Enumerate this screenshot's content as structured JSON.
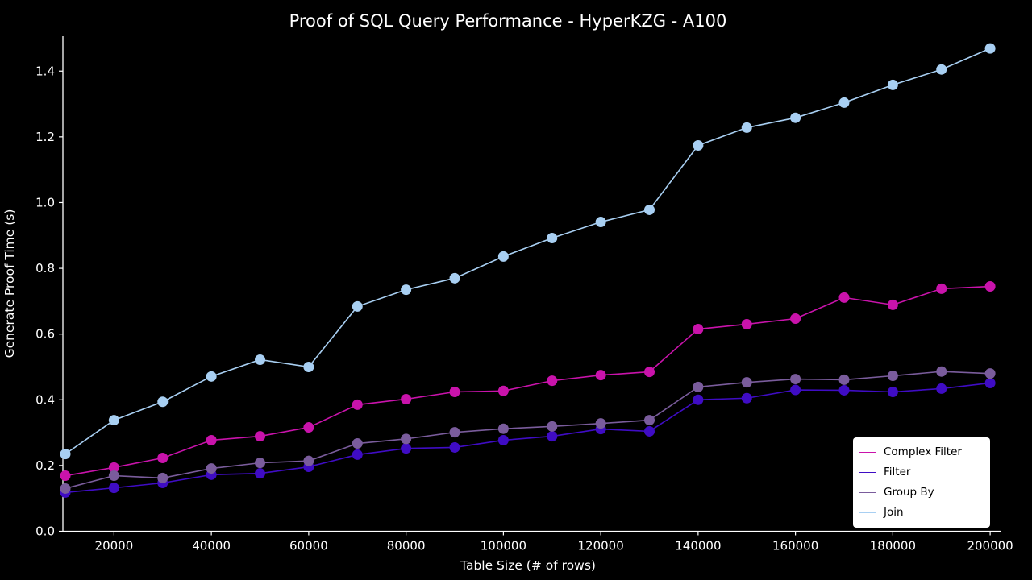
{
  "chart_data": {
    "type": "line",
    "title": "Proof of SQL Query Performance - HyperKZG - A100",
    "xlabel": "Table Size (# of rows)",
    "ylabel": "Generate Proof Time (s)",
    "background_color": "#000000",
    "axis_color": "#ffffff",
    "grid": false,
    "xlim": [
      9500,
      202300
    ],
    "ylim": [
      0,
      1.506
    ],
    "x_tick_values": [
      20000,
      40000,
      60000,
      80000,
      100000,
      120000,
      140000,
      160000,
      180000,
      200000
    ],
    "x_tick_labels": [
      "20000",
      "40000",
      "60000",
      "80000",
      "100000",
      "120000",
      "140000",
      "160000",
      "180000",
      "200000"
    ],
    "y_tick_values": [
      0.0,
      0.2,
      0.4,
      0.6,
      0.8,
      1.0,
      1.2,
      1.4
    ],
    "y_tick_labels": [
      "0.0",
      "0.2",
      "0.4",
      "0.6",
      "0.8",
      "1.0",
      "1.2",
      "1.4"
    ],
    "x": [
      10000,
      20000,
      30000,
      40000,
      50000,
      60000,
      70000,
      80000,
      90000,
      100000,
      110000,
      120000,
      130000,
      140000,
      150000,
      160000,
      170000,
      180000,
      190000,
      200000
    ],
    "series": [
      {
        "name": "Complex Filter",
        "color": "#c913ab",
        "values": [
          0.169,
          0.194,
          0.223,
          0.277,
          0.289,
          0.316,
          0.385,
          0.402,
          0.424,
          0.427,
          0.458,
          0.475,
          0.485,
          0.615,
          0.63,
          0.647,
          0.711,
          0.689,
          0.738,
          0.745
        ]
      },
      {
        "name": "Filter",
        "color": "#3f0cc4",
        "values": [
          0.118,
          0.132,
          0.147,
          0.172,
          0.176,
          0.196,
          0.233,
          0.252,
          0.255,
          0.277,
          0.289,
          0.311,
          0.304,
          0.4,
          0.405,
          0.43,
          0.429,
          0.424,
          0.434,
          0.451
        ]
      },
      {
        "name": "Group By",
        "color": "#7a5c9c",
        "values": [
          0.13,
          0.169,
          0.162,
          0.191,
          0.208,
          0.214,
          0.267,
          0.281,
          0.301,
          0.312,
          0.319,
          0.328,
          0.338,
          0.439,
          0.453,
          0.463,
          0.461,
          0.473,
          0.486,
          0.48
        ]
      },
      {
        "name": "Join",
        "color": "#a8cff2",
        "values": [
          0.235,
          0.338,
          0.394,
          0.471,
          0.522,
          0.5,
          0.684,
          0.735,
          0.77,
          0.836,
          0.892,
          0.941,
          0.978,
          1.174,
          1.228,
          1.258,
          1.304,
          1.358,
          1.405,
          1.469
        ]
      }
    ],
    "legend": {
      "position": "lower right",
      "background": "#ffffff",
      "text_color": "#000000",
      "entries": [
        "Complex Filter",
        "Filter",
        "Group By",
        "Join"
      ]
    }
  }
}
